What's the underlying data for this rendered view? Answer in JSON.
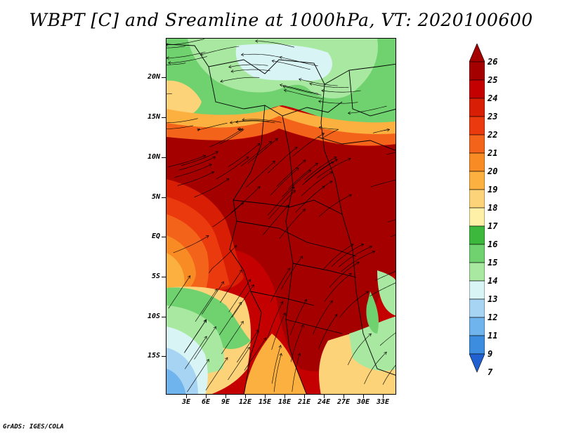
{
  "title": "WBPT [C] and Sreamline at 1000hPa, VT: 2020100600",
  "map": {
    "lat_labels": [
      "20N",
      "15N",
      "10N",
      "5N",
      "EQ",
      "5S",
      "10S",
      "15S"
    ],
    "lon_labels": [
      "3E",
      "6E",
      "9E",
      "12E",
      "15E",
      "18E",
      "21E",
      "24E",
      "27E",
      "30E",
      "33E"
    ],
    "field": "Wet-bulb potential temperature",
    "overlay": "Streamlines"
  },
  "colorbar": {
    "levels": [
      "26",
      "25",
      "24",
      "23",
      "22",
      "21",
      "20",
      "19",
      "18",
      "17",
      "16",
      "15",
      "14",
      "13",
      "12",
      "11",
      "9",
      "7"
    ],
    "colors": [
      "#a50000",
      "#c40000",
      "#d81e05",
      "#ea3a0e",
      "#f4631a",
      "#f88b24",
      "#fbb040",
      "#fdd37a",
      "#fff0a8",
      "#3cb83c",
      "#6fd26f",
      "#a8e8a0",
      "#d8f4f4",
      "#a8d4f4",
      "#6fb4ec",
      "#3c8ce0",
      "#2060d0"
    ]
  },
  "credit": "GrADS: IGES/COLA"
}
